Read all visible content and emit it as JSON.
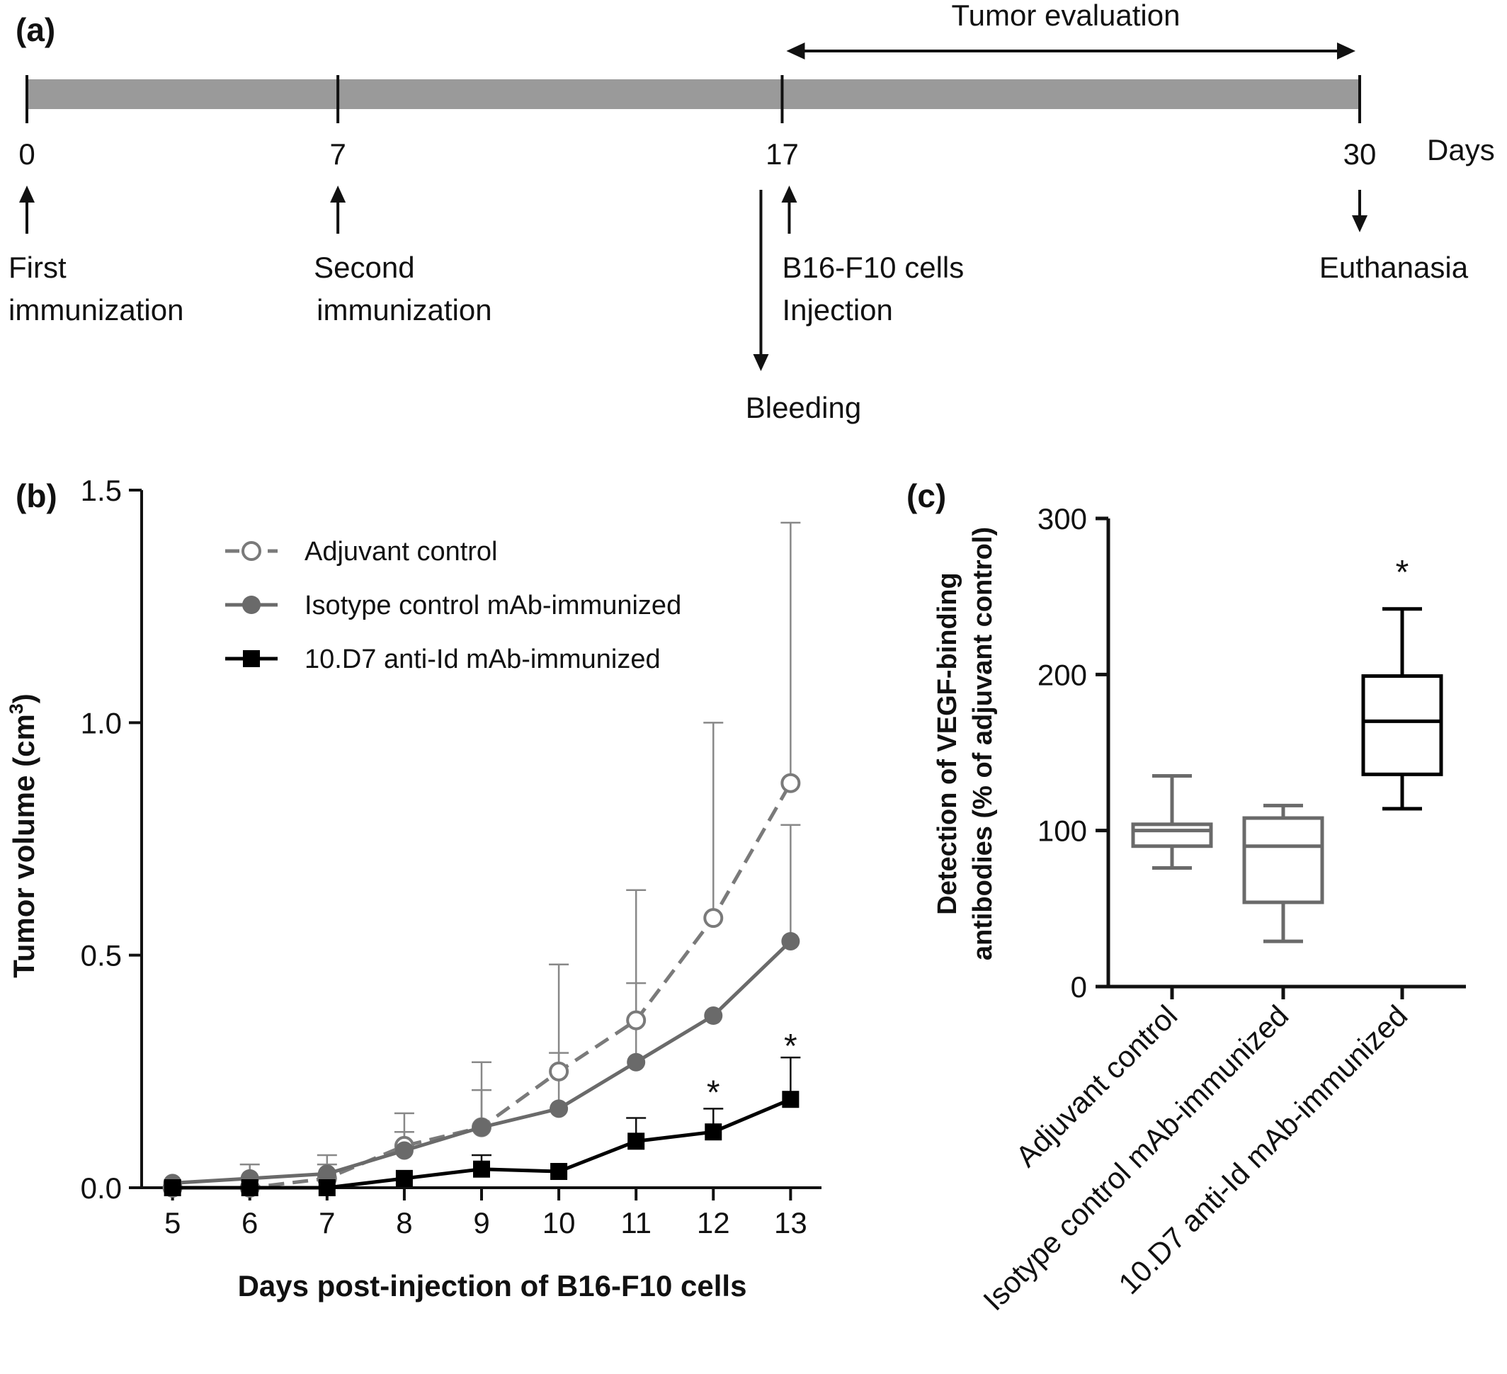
{
  "panel_a": {
    "label": "(a)",
    "unit": "Days",
    "span_label": "Tumor evaluation",
    "ticks": [
      0,
      7,
      17,
      30
    ],
    "day_min": 0,
    "day_max": 30,
    "events": [
      {
        "day": 0,
        "direction": "up",
        "lines": [
          "First",
          "immunization"
        ]
      },
      {
        "day": 7,
        "direction": "up",
        "lines": [
          "Second",
          "immunization"
        ]
      },
      {
        "day": 17,
        "direction": "up",
        "lines": [
          "B16-F10 cells",
          "Injection"
        ]
      },
      {
        "day": 17,
        "direction": "down",
        "lines": [
          "Bleeding"
        ]
      },
      {
        "day": 30,
        "direction": "down",
        "lines": [
          "Euthanasia"
        ]
      }
    ],
    "span": [
      17,
      30
    ]
  },
  "chart_data": [
    {
      "panel": "(b)",
      "type": "line",
      "xlabel": "Days post-injection of B16-F10 cells",
      "ylabel": "Tumor volume (cm",
      "ylabel_sup": "3",
      "ylabel_end": ")",
      "x": [
        5,
        6,
        7,
        8,
        9,
        10,
        11,
        12,
        13
      ],
      "xlim": [
        4.6,
        13.4
      ],
      "ylim": [
        0,
        1.5
      ],
      "yticks": [
        "0.0",
        "0.5",
        "1.0",
        "1.5"
      ],
      "legend_position": "top-left",
      "series": [
        {
          "name": "Adjuvant control",
          "marker": "open-circle",
          "style": "dashed",
          "color": "#7a7a7a",
          "values": [
            0.0,
            0.0,
            0.02,
            0.09,
            0.13,
            0.25,
            0.36,
            0.58,
            0.87
          ],
          "error": [
            0.0,
            0.0,
            0.05,
            0.07,
            0.14,
            0.23,
            0.28,
            0.42,
            0.56
          ]
        },
        {
          "name": "Isotype control mAb-immunized",
          "marker": "filled-circle",
          "style": "solid",
          "color": "#6a6a6a",
          "values": [
            0.01,
            0.02,
            0.03,
            0.08,
            0.13,
            0.17,
            0.27,
            0.37,
            0.53
          ],
          "error": [
            0.0,
            0.03,
            0.02,
            0.04,
            0.08,
            0.12,
            0.17,
            0.0,
            0.25
          ]
        },
        {
          "name": "10.D7 anti-Id mAb-immunized",
          "marker": "filled-square",
          "style": "solid",
          "color": "#000000",
          "values": [
            0.0,
            0.0,
            0.0,
            0.02,
            0.04,
            0.035,
            0.1,
            0.12,
            0.19
          ],
          "error": [
            0.0,
            0.0,
            0.0,
            0.0,
            0.03,
            0.0,
            0.05,
            0.05,
            0.09
          ]
        }
      ],
      "annotations": [
        {
          "x": 12,
          "y": 0.22,
          "text": "*"
        },
        {
          "x": 13,
          "y": 0.32,
          "text": "*"
        }
      ]
    },
    {
      "panel": "(c)",
      "type": "box",
      "ylabel_line1": "Detection of VEGF-binding",
      "ylabel_line2": "antibodies (% of adjuvant control)",
      "ylim": [
        0,
        300
      ],
      "yticks": [
        "0",
        "100",
        "200",
        "300"
      ],
      "categories": [
        "Adjuvant control",
        "Isotype control mAb-immunized",
        "10.D7 anti-Id mAb-immunized"
      ],
      "boxes": [
        {
          "min": 76,
          "q1": 90,
          "median": 100,
          "q3": 104,
          "max": 135,
          "color": "#6a6a6a"
        },
        {
          "min": 29,
          "q1": 54,
          "median": 90,
          "q3": 108,
          "max": 116,
          "color": "#6a6a6a"
        },
        {
          "min": 114,
          "q1": 136,
          "median": 170,
          "q3": 199,
          "max": 242,
          "color": "#000000"
        }
      ],
      "annotations": [
        {
          "category": 2,
          "y": 270,
          "text": "*"
        }
      ]
    }
  ]
}
